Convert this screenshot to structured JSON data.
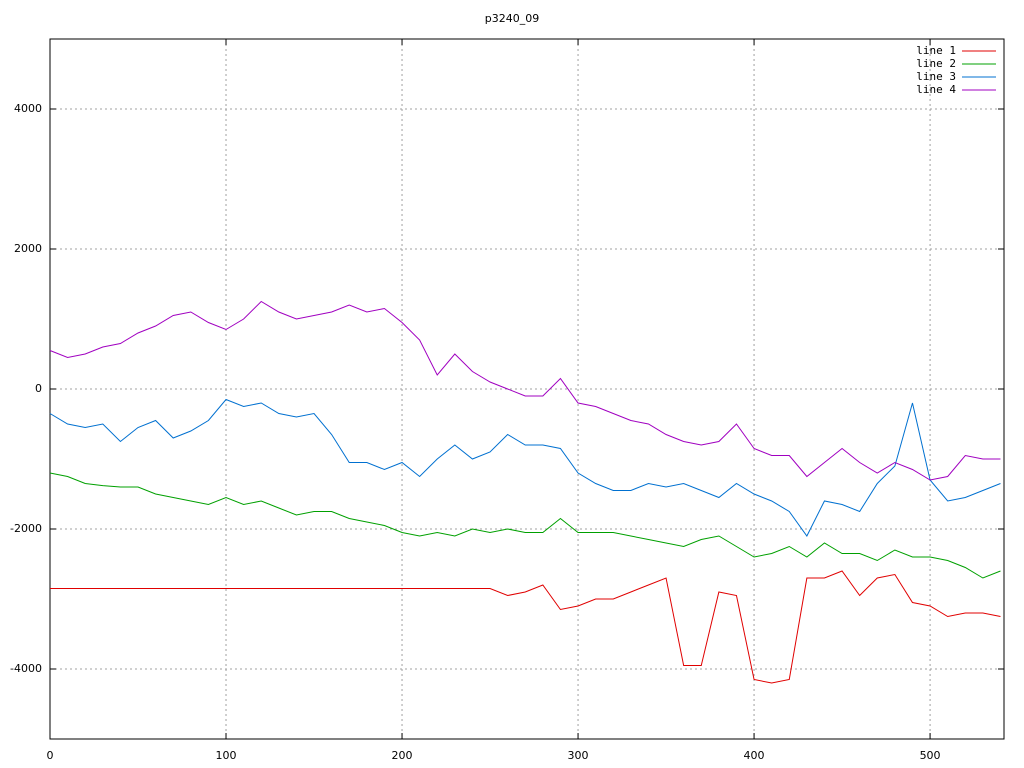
{
  "chart_data": {
    "type": "line",
    "title": "p3240_09",
    "x": [
      0,
      10,
      20,
      30,
      40,
      50,
      60,
      70,
      80,
      90,
      100,
      110,
      120,
      130,
      140,
      150,
      160,
      170,
      180,
      190,
      200,
      210,
      220,
      230,
      240,
      250,
      260,
      270,
      280,
      290,
      300,
      310,
      320,
      330,
      340,
      350,
      360,
      370,
      380,
      390,
      400,
      410,
      420,
      430,
      440,
      450,
      460,
      470,
      480,
      490,
      500,
      510,
      520,
      530,
      540
    ],
    "xlim": [
      0,
      542
    ],
    "ylim": [
      -5000,
      5000
    ],
    "xticks": [
      0,
      100,
      200,
      300,
      400,
      500
    ],
    "yticks": [
      -4000,
      -2000,
      0,
      2000,
      4000
    ],
    "grid": true,
    "legend": "top-right",
    "series": [
      {
        "name": "line 1",
        "color": "#e00000",
        "values": [
          -2850,
          -2850,
          -2850,
          -2850,
          -2850,
          -2850,
          -2850,
          -2850,
          -2850,
          -2850,
          -2850,
          -2850,
          -2850,
          -2850,
          -2850,
          -2850,
          -2850,
          -2850,
          -2850,
          -2850,
          -2850,
          -2850,
          -2850,
          -2850,
          -2850,
          -2850,
          -2950,
          -2900,
          -2800,
          -3150,
          -3100,
          -3000,
          -3000,
          -2900,
          -2800,
          -2700,
          -3950,
          -3950,
          -2900,
          -2950,
          -4150,
          -4200,
          -4150,
          -2700,
          -2700,
          -2600,
          -2950,
          -2700,
          -2650,
          -3050,
          -3100,
          -3250,
          -3200,
          -3200,
          -3250
        ]
      },
      {
        "name": "line 2",
        "color": "#00a000",
        "values": [
          -1200,
          -1250,
          -1350,
          -1380,
          -1400,
          -1400,
          -1500,
          -1550,
          -1600,
          -1650,
          -1550,
          -1650,
          -1600,
          -1700,
          -1800,
          -1750,
          -1750,
          -1850,
          -1900,
          -1950,
          -2050,
          -2100,
          -2050,
          -2100,
          -2000,
          -2050,
          -2000,
          -2050,
          -2050,
          -1850,
          -2050,
          -2050,
          -2050,
          -2100,
          -2150,
          -2200,
          -2250,
          -2150,
          -2100,
          -2250,
          -2400,
          -2350,
          -2250,
          -2400,
          -2200,
          -2350,
          -2350,
          -2450,
          -2300,
          -2400,
          -2400,
          -2450,
          -2550,
          -2700,
          -2600
        ]
      },
      {
        "name": "line 3",
        "color": "#0070d0",
        "values": [
          -350,
          -500,
          -550,
          -500,
          -750,
          -550,
          -450,
          -700,
          -600,
          -450,
          -150,
          -250,
          -200,
          -350,
          -400,
          -350,
          -650,
          -1050,
          -1050,
          -1150,
          -1050,
          -1250,
          -1000,
          -800,
          -1000,
          -900,
          -650,
          -800,
          -800,
          -850,
          -1200,
          -1350,
          -1450,
          -1450,
          -1350,
          -1400,
          -1350,
          -1450,
          -1550,
          -1350,
          -1500,
          -1600,
          -1750,
          -2100,
          -1600,
          -1650,
          -1750,
          -1350,
          -1100,
          -200,
          -1300,
          -1600,
          -1550,
          -1450,
          -1350
        ]
      },
      {
        "name": "line 4",
        "color": "#a000c0",
        "values": [
          550,
          450,
          500,
          600,
          650,
          800,
          900,
          1050,
          1100,
          950,
          850,
          1000,
          1250,
          1100,
          1000,
          1050,
          1100,
          1200,
          1100,
          1150,
          950,
          700,
          200,
          500,
          250,
          100,
          0,
          -100,
          -100,
          150,
          -200,
          -250,
          -350,
          -450,
          -500,
          -650,
          -750,
          -800,
          -750,
          -500,
          -850,
          -950,
          -950,
          -1250,
          -1050,
          -850,
          -1050,
          -1200,
          -1050,
          -1150,
          -1300,
          -1250,
          -950,
          -1000,
          -1000
        ]
      }
    ]
  }
}
